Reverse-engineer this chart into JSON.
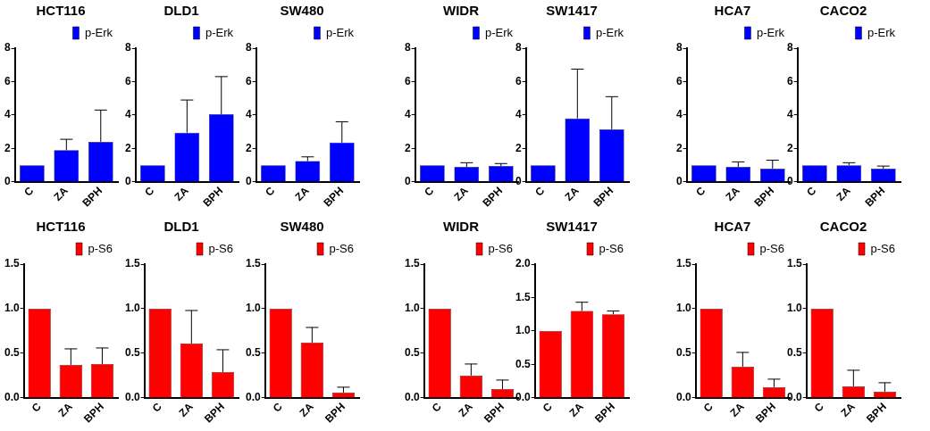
{
  "chart_data": [
    {
      "type": "bar",
      "title": "HCT116",
      "categories": [
        "C",
        "ZA",
        "BPH"
      ],
      "series": [
        {
          "name": "p-Erk",
          "color": "#0000ff",
          "values": [
            1,
            1.9,
            2.4
          ],
          "errors": [
            null,
            [
              1.9,
              2.55
            ],
            [
              2.4,
              4.3
            ]
          ]
        }
      ],
      "ylim": [
        0,
        8
      ],
      "yticks": [
        0,
        2,
        4,
        6,
        8
      ],
      "legend": "top right",
      "grid": false
    },
    {
      "type": "bar",
      "title": "DLD1",
      "categories": [
        "C",
        "ZA",
        "BPH"
      ],
      "series": [
        {
          "name": "p-Erk",
          "color": "#0000ff",
          "values": [
            1,
            2.95,
            4.05
          ],
          "errors": [
            null,
            [
              2.95,
              4.9
            ],
            [
              4.05,
              6.3
            ]
          ]
        }
      ],
      "ylim": [
        0,
        8
      ],
      "yticks": [
        0,
        2,
        4,
        6,
        8
      ],
      "legend": "top right",
      "grid": false
    },
    {
      "type": "bar",
      "title": "SW480",
      "categories": [
        "C",
        "ZA",
        "BPH"
      ],
      "series": [
        {
          "name": "p-Erk",
          "color": "#0000ff",
          "values": [
            1,
            1.25,
            2.35
          ],
          "errors": [
            null,
            [
              1.25,
              1.5
            ],
            [
              2.35,
              3.6
            ]
          ]
        }
      ],
      "ylim": [
        0,
        8
      ],
      "yticks": [
        0,
        2,
        4,
        6,
        8
      ],
      "legend": "top right",
      "grid": false
    },
    {
      "type": "bar",
      "title": "WIDR",
      "categories": [
        "C",
        "ZA",
        "BPH"
      ],
      "series": [
        {
          "name": "p-Erk",
          "color": "#0000ff",
          "values": [
            1,
            0.9,
            0.95
          ],
          "errors": [
            null,
            [
              0.9,
              1.15
            ],
            [
              0.95,
              1.1
            ]
          ]
        }
      ],
      "ylim": [
        0,
        8
      ],
      "yticks": [
        0,
        2,
        4,
        6,
        8
      ],
      "legend": "top right",
      "grid": false
    },
    {
      "type": "bar",
      "title": "SW1417",
      "categories": [
        "C",
        "ZA",
        "BPH"
      ],
      "series": [
        {
          "name": "p-Erk",
          "color": "#0000ff",
          "values": [
            1,
            3.8,
            3.15
          ],
          "errors": [
            null,
            [
              3.8,
              6.75
            ],
            [
              3.15,
              5.1
            ]
          ]
        }
      ],
      "ylim": [
        0,
        8
      ],
      "yticks": [
        0,
        2,
        4,
        6,
        8
      ],
      "legend": "top right",
      "grid": false
    },
    {
      "type": "bar",
      "title": "HCA7",
      "categories": [
        "C",
        "ZA",
        "BPH"
      ],
      "series": [
        {
          "name": "p-Erk",
          "color": "#0000ff",
          "values": [
            1,
            0.9,
            0.8
          ],
          "errors": [
            null,
            [
              0.9,
              1.2
            ],
            [
              0.8,
              1.3
            ]
          ]
        }
      ],
      "ylim": [
        0,
        8
      ],
      "yticks": [
        0,
        2,
        4,
        6,
        8
      ],
      "legend": "top right",
      "grid": false
    },
    {
      "type": "bar",
      "title": "CACO2",
      "categories": [
        "C",
        "ZA",
        "BPH"
      ],
      "series": [
        {
          "name": "p-Erk",
          "color": "#0000ff",
          "values": [
            1,
            1,
            0.8
          ],
          "errors": [
            null,
            [
              1,
              1.15
            ],
            [
              0.8,
              0.95
            ]
          ]
        }
      ],
      "ylim": [
        0,
        8
      ],
      "yticks": [
        0,
        2,
        4,
        6,
        8
      ],
      "legend": "top right",
      "grid": false
    },
    {
      "type": "bar",
      "title": "HCT116",
      "categories": [
        "C",
        "ZA",
        "BPH"
      ],
      "series": [
        {
          "name": "p-S6",
          "color": "#ff0000",
          "values": [
            1,
            0.37,
            0.38
          ],
          "errors": [
            null,
            [
              0.37,
              0.55
            ],
            [
              0.38,
              0.56
            ]
          ]
        }
      ],
      "ylim": [
        0,
        1.5
      ],
      "yticks": [
        {
          "value": 0,
          "label": "0.0"
        },
        {
          "value": 0.5,
          "label": "0.5"
        },
        {
          "value": 1,
          "label": "1.0"
        },
        {
          "value": 1.5,
          "label": "1.5"
        }
      ],
      "legend": "top right",
      "grid": false
    },
    {
      "type": "bar",
      "title": "DLD1",
      "categories": [
        "C",
        "ZA",
        "BPH"
      ],
      "series": [
        {
          "name": "p-S6",
          "color": "#ff0000",
          "values": [
            1,
            0.61,
            0.29
          ],
          "errors": [
            null,
            [
              0.61,
              0.98
            ],
            [
              0.29,
              0.54
            ]
          ]
        }
      ],
      "ylim": [
        0,
        1.5
      ],
      "yticks": [
        {
          "value": 0,
          "label": "0.0"
        },
        {
          "value": 0.5,
          "label": "0.5"
        },
        {
          "value": 1,
          "label": "1.0"
        },
        {
          "value": 1.5,
          "label": "1.5"
        }
      ],
      "legend": "top right",
      "grid": false
    },
    {
      "type": "bar",
      "title": "SW480",
      "categories": [
        "C",
        "ZA",
        "BPH"
      ],
      "series": [
        {
          "name": "p-S6",
          "color": "#ff0000",
          "values": [
            1,
            0.62,
            0.06
          ],
          "errors": [
            null,
            [
              0.62,
              0.79
            ],
            [
              0.06,
              0.12
            ]
          ]
        }
      ],
      "ylim": [
        0,
        1.5
      ],
      "yticks": [
        {
          "value": 0,
          "label": "0.0"
        },
        {
          "value": 0.5,
          "label": "0.5"
        },
        {
          "value": 1,
          "label": "1.0"
        },
        {
          "value": 1.5,
          "label": "1.5"
        }
      ],
      "legend": "top right",
      "grid": false
    },
    {
      "type": "bar",
      "title": "WIDR",
      "categories": [
        "C",
        "ZA",
        "BPH"
      ],
      "series": [
        {
          "name": "p-S6",
          "color": "#ff0000",
          "values": [
            1,
            0.25,
            0.1
          ],
          "errors": [
            null,
            [
              0.25,
              0.38
            ],
            [
              0.1,
              0.2
            ]
          ]
        }
      ],
      "ylim": [
        0,
        1.5
      ],
      "yticks": [
        {
          "value": 0,
          "label": "0.0"
        },
        {
          "value": 0.5,
          "label": "0.5"
        },
        {
          "value": 1,
          "label": "1.0"
        },
        {
          "value": 1.5,
          "label": "1.5"
        }
      ],
      "legend": "top right",
      "grid": false
    },
    {
      "type": "bar",
      "title": "SW1417",
      "categories": [
        "C",
        "ZA",
        "BPH"
      ],
      "series": [
        {
          "name": "p-S6",
          "color": "#ff0000",
          "values": [
            1,
            1.3,
            1.25
          ],
          "errors": [
            null,
            [
              1.3,
              1.43
            ],
            [
              1.25,
              1.3
            ]
          ]
        }
      ],
      "ylim": [
        0,
        2
      ],
      "yticks": [
        {
          "value": 0,
          "label": "0.0"
        },
        {
          "value": 0.5,
          "label": "0.5"
        },
        {
          "value": 1,
          "label": "1.0"
        },
        {
          "value": 1.5,
          "label": "1.5"
        },
        {
          "value": 2,
          "label": "2.0"
        }
      ],
      "legend": "top right",
      "grid": false
    },
    {
      "type": "bar",
      "title": "HCA7",
      "categories": [
        "C",
        "ZA",
        "BPH"
      ],
      "series": [
        {
          "name": "p-S6",
          "color": "#ff0000",
          "values": [
            1,
            0.35,
            0.12
          ],
          "errors": [
            null,
            [
              0.35,
              0.51
            ],
            [
              0.12,
              0.21
            ]
          ]
        }
      ],
      "ylim": [
        0,
        1.5
      ],
      "yticks": [
        {
          "value": 0,
          "label": "0.0"
        },
        {
          "value": 0.5,
          "label": "0.5"
        },
        {
          "value": 1,
          "label": "1.0"
        },
        {
          "value": 1.5,
          "label": "1.5"
        }
      ],
      "legend": "top right",
      "grid": false
    },
    {
      "type": "bar",
      "title": "CACO2",
      "categories": [
        "C",
        "ZA",
        "BPH"
      ],
      "series": [
        {
          "name": "p-S6",
          "color": "#ff0000",
          "values": [
            1,
            0.13,
            0.07
          ],
          "errors": [
            null,
            [
              0.13,
              0.31
            ],
            [
              0.07,
              0.17
            ]
          ]
        }
      ],
      "ylim": [
        0,
        1.5
      ],
      "yticks": [
        {
          "value": 0,
          "label": "0.0"
        },
        {
          "value": 0.5,
          "label": "0.5"
        },
        {
          "value": 1,
          "label": "1.0"
        },
        {
          "value": 1.5,
          "label": "1.5"
        }
      ],
      "legend": "top right",
      "grid": false
    }
  ]
}
